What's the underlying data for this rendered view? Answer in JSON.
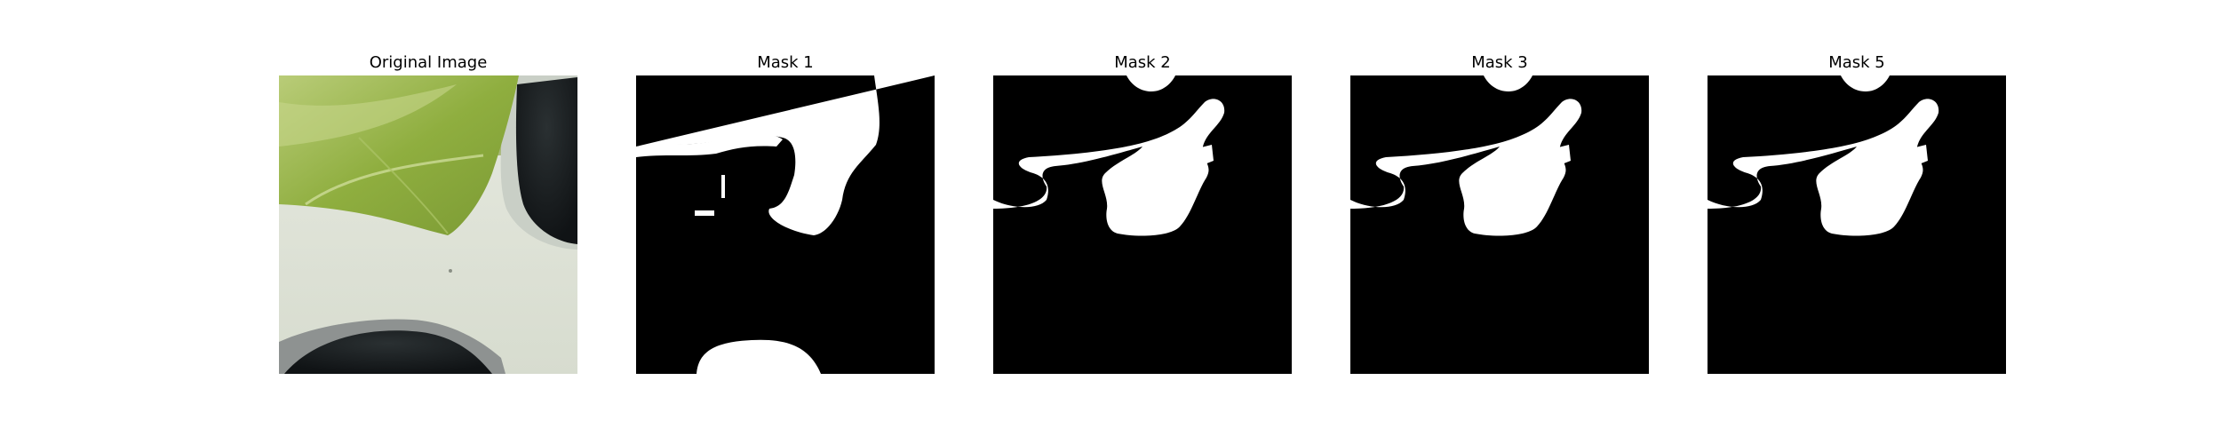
{
  "panels": [
    {
      "title": "Original Image",
      "kind": "photo"
    },
    {
      "title": "Mask 1",
      "kind": "mask"
    },
    {
      "title": "Mask 2",
      "kind": "mask"
    },
    {
      "title": "Mask 3",
      "kind": "mask"
    },
    {
      "title": "Mask 5",
      "kind": "mask"
    }
  ],
  "colors": {
    "mask_background": "#000000",
    "mask_foreground": "#ffffff"
  }
}
